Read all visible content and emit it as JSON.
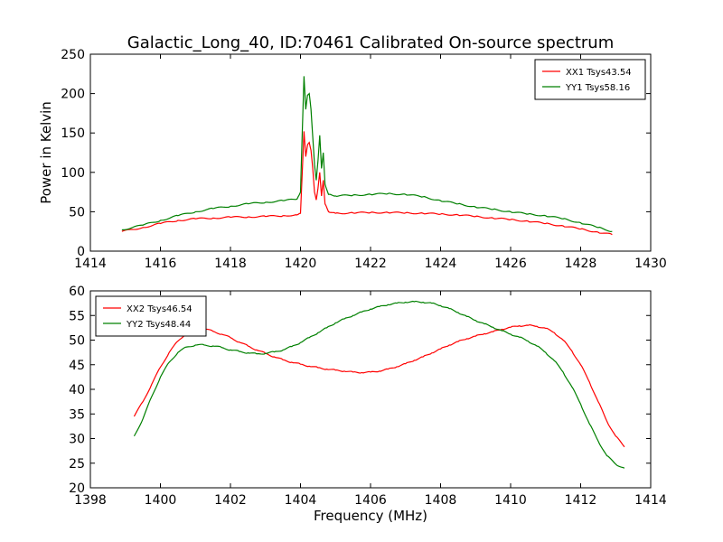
{
  "title": "Galactic_Long_40, ID:70461 Calibrated On-source spectrum",
  "chart_data": [
    {
      "type": "line",
      "ylabel": "Power in Kelvin",
      "xlabel": "",
      "xlim": [
        1414,
        1430
      ],
      "ylim": [
        0,
        250
      ],
      "xticks": [
        1414,
        1416,
        1418,
        1420,
        1422,
        1424,
        1426,
        1428,
        1430
      ],
      "yticks": [
        0,
        50,
        100,
        150,
        200,
        250
      ],
      "legend_position": "top-right",
      "grid": false,
      "series": [
        {
          "name": "XX1 Tsys43.54",
          "color": "#ff0000",
          "x": [
            1414.9,
            1415.5,
            1416.0,
            1416.5,
            1417.0,
            1417.5,
            1418.0,
            1418.5,
            1419.0,
            1419.5,
            1419.9,
            1420.0,
            1420.05,
            1420.1,
            1420.15,
            1420.2,
            1420.25,
            1420.3,
            1420.35,
            1420.4,
            1420.45,
            1420.5,
            1420.55,
            1420.6,
            1420.65,
            1420.7,
            1420.8,
            1421.0,
            1421.5,
            1422.0,
            1422.5,
            1423.0,
            1423.5,
            1424.0,
            1424.5,
            1425.0,
            1425.5,
            1426.0,
            1426.5,
            1427.0,
            1427.5,
            1428.0,
            1428.5,
            1428.9
          ],
          "values": [
            25,
            30,
            35,
            39,
            41,
            42,
            43,
            43.5,
            44,
            45,
            46,
            48,
            100,
            152,
            120,
            135,
            138,
            128,
            105,
            75,
            65,
            80,
            100,
            70,
            90,
            60,
            50,
            48,
            48.5,
            49,
            49,
            48.5,
            48,
            47,
            46,
            44,
            42,
            40,
            38,
            35,
            32,
            28,
            24,
            21
          ]
        },
        {
          "name": "YY1 Tsys58.16",
          "color": "#008000",
          "x": [
            1414.9,
            1415.5,
            1416.0,
            1416.5,
            1417.0,
            1417.5,
            1418.0,
            1418.5,
            1419.0,
            1419.5,
            1419.9,
            1420.0,
            1420.05,
            1420.1,
            1420.15,
            1420.2,
            1420.25,
            1420.3,
            1420.35,
            1420.4,
            1420.45,
            1420.5,
            1420.55,
            1420.6,
            1420.65,
            1420.7,
            1420.8,
            1421.0,
            1421.5,
            1422.0,
            1422.5,
            1423.0,
            1423.5,
            1424.0,
            1424.5,
            1425.0,
            1425.5,
            1426.0,
            1426.5,
            1427.0,
            1427.5,
            1428.0,
            1428.5,
            1428.9
          ],
          "values": [
            27,
            33,
            39,
            45,
            50,
            54,
            57,
            60,
            62,
            64,
            66,
            75,
            150,
            222,
            180,
            198,
            200,
            180,
            145,
            110,
            90,
            115,
            147,
            105,
            125,
            85,
            72,
            70,
            71,
            72,
            73,
            72,
            69,
            64,
            60,
            56,
            53,
            50,
            47,
            45,
            41,
            36,
            30,
            25
          ]
        }
      ]
    },
    {
      "type": "line",
      "xlabel": "Frequency (MHz)",
      "ylabel": "",
      "xlim": [
        1398,
        1414
      ],
      "ylim": [
        20,
        60
      ],
      "xticks": [
        1398,
        1400,
        1402,
        1404,
        1406,
        1408,
        1410,
        1412,
        1414
      ],
      "yticks": [
        20,
        25,
        30,
        35,
        40,
        45,
        50,
        55,
        60
      ],
      "legend_position": "top-left",
      "grid": false,
      "series": [
        {
          "name": "XX2 Tsys46.54",
          "color": "#ff0000",
          "x": [
            1399.25,
            1399.5,
            1399.75,
            1400.0,
            1400.25,
            1400.5,
            1400.75,
            1401.0,
            1401.25,
            1401.5,
            1401.75,
            1402.0,
            1402.25,
            1402.5,
            1402.75,
            1403.0,
            1403.25,
            1403.5,
            1403.75,
            1404.0,
            1404.25,
            1404.5,
            1404.75,
            1405.0,
            1405.25,
            1405.5,
            1405.75,
            1406.0,
            1406.25,
            1406.5,
            1406.75,
            1407.0,
            1407.25,
            1407.5,
            1407.75,
            1408.0,
            1408.25,
            1408.5,
            1408.75,
            1409.0,
            1409.25,
            1409.5,
            1409.75,
            1410.0,
            1410.25,
            1410.5,
            1410.75,
            1411.0,
            1411.25,
            1411.5,
            1411.75,
            1412.0,
            1412.25,
            1412.5,
            1412.75,
            1413.0,
            1413.25
          ],
          "values": [
            34.5,
            37.5,
            41.0,
            44.5,
            47.5,
            49.8,
            51.5,
            52.2,
            52.3,
            51.8,
            51.2,
            50.5,
            49.6,
            48.8,
            48.0,
            47.3,
            46.6,
            46.0,
            45.5,
            45.1,
            44.7,
            44.4,
            44.1,
            43.9,
            43.7,
            43.5,
            43.4,
            43.5,
            43.7,
            44.1,
            44.6,
            45.2,
            45.9,
            46.6,
            47.4,
            48.2,
            49.0,
            49.7,
            50.3,
            50.8,
            51.3,
            51.7,
            52.2,
            52.6,
            52.9,
            53.0,
            52.8,
            52.4,
            51.5,
            50.0,
            47.8,
            45.0,
            41.5,
            37.5,
            33.5,
            30.5,
            28.3
          ]
        },
        {
          "name": "YY2 Tsys48.44",
          "color": "#008000",
          "x": [
            1399.25,
            1399.5,
            1399.75,
            1400.0,
            1400.25,
            1400.5,
            1400.75,
            1401.0,
            1401.25,
            1401.5,
            1401.75,
            1402.0,
            1402.25,
            1402.5,
            1402.75,
            1403.0,
            1403.25,
            1403.5,
            1403.75,
            1404.0,
            1404.25,
            1404.5,
            1404.75,
            1405.0,
            1405.25,
            1405.5,
            1405.75,
            1406.0,
            1406.25,
            1406.5,
            1406.75,
            1407.0,
            1407.25,
            1407.5,
            1407.75,
            1408.0,
            1408.25,
            1408.5,
            1408.75,
            1409.0,
            1409.25,
            1409.5,
            1409.75,
            1410.0,
            1410.25,
            1410.5,
            1410.75,
            1411.0,
            1411.25,
            1411.5,
            1411.75,
            1412.0,
            1412.25,
            1412.5,
            1412.75,
            1413.0,
            1413.25
          ],
          "values": [
            30.5,
            34.0,
            38.5,
            42.5,
            45.5,
            47.5,
            48.6,
            49.0,
            49.0,
            48.8,
            48.5,
            48.0,
            47.7,
            47.4,
            47.2,
            47.3,
            47.6,
            48.0,
            48.7,
            49.5,
            50.5,
            51.5,
            52.5,
            53.5,
            54.3,
            55.0,
            55.7,
            56.3,
            56.8,
            57.2,
            57.5,
            57.7,
            57.8,
            57.7,
            57.5,
            57.0,
            56.4,
            55.6,
            54.8,
            54.0,
            53.3,
            52.6,
            51.9,
            51.2,
            50.6,
            49.8,
            48.8,
            47.5,
            45.8,
            43.5,
            40.5,
            37.0,
            33.0,
            29.5,
            26.5,
            24.8,
            24.0
          ]
        }
      ]
    }
  ]
}
